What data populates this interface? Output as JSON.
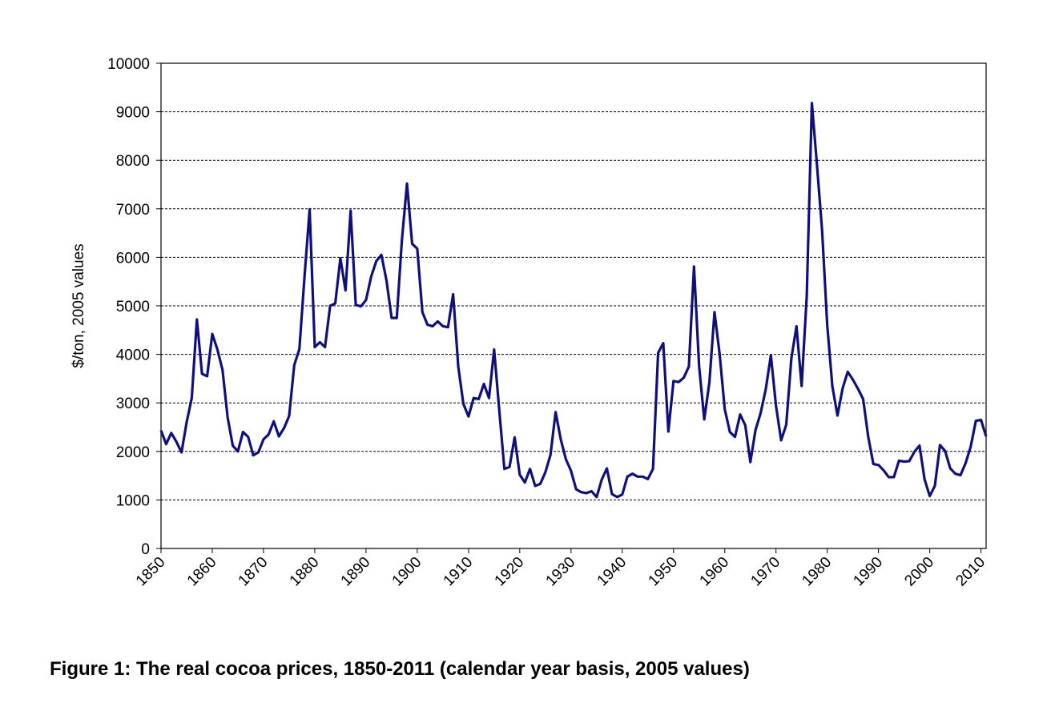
{
  "chart_data": {
    "type": "line",
    "caption": "Figure 1: The real cocoa prices, 1850-2011 (calendar year basis, 2005 values)",
    "y_label": "$/ton, 2005 values",
    "x": [
      1850,
      1851,
      1852,
      1853,
      1854,
      1855,
      1856,
      1857,
      1858,
      1859,
      1860,
      1861,
      1862,
      1863,
      1864,
      1865,
      1866,
      1867,
      1868,
      1869,
      1870,
      1871,
      1872,
      1873,
      1874,
      1875,
      1876,
      1877,
      1878,
      1879,
      1880,
      1881,
      1882,
      1883,
      1884,
      1885,
      1886,
      1887,
      1888,
      1889,
      1890,
      1891,
      1892,
      1893,
      1894,
      1895,
      1896,
      1897,
      1898,
      1899,
      1900,
      1901,
      1902,
      1903,
      1904,
      1905,
      1906,
      1907,
      1908,
      1909,
      1910,
      1911,
      1912,
      1913,
      1914,
      1915,
      1916,
      1917,
      1918,
      1919,
      1920,
      1921,
      1922,
      1923,
      1924,
      1925,
      1926,
      1927,
      1928,
      1929,
      1930,
      1931,
      1932,
      1933,
      1934,
      1935,
      1936,
      1937,
      1938,
      1939,
      1940,
      1941,
      1942,
      1943,
      1944,
      1945,
      1946,
      1947,
      1948,
      1949,
      1950,
      1951,
      1952,
      1953,
      1954,
      1955,
      1956,
      1957,
      1958,
      1959,
      1960,
      1961,
      1962,
      1963,
      1964,
      1965,
      1966,
      1967,
      1968,
      1969,
      1970,
      1971,
      1972,
      1973,
      1974,
      1975,
      1976,
      1977,
      1978,
      1979,
      1980,
      1981,
      1982,
      1983,
      1984,
      1985,
      1986,
      1987,
      1988,
      1989,
      1990,
      1991,
      1992,
      1993,
      1994,
      1995,
      1996,
      1997,
      1998,
      1999,
      2000,
      2001,
      2002,
      2003,
      2004,
      2005,
      2006,
      2007,
      2008,
      2009,
      2010,
      2011
    ],
    "series": [
      {
        "name": "Real cocoa price",
        "color": "#10107a",
        "values": [
          2430,
          2150,
          2380,
          2200,
          1980,
          2600,
          3100,
          4720,
          3600,
          3550,
          4420,
          4100,
          3680,
          2700,
          2120,
          2000,
          2400,
          2300,
          1920,
          1980,
          2250,
          2350,
          2620,
          2310,
          2480,
          2730,
          3780,
          4110,
          5600,
          6990,
          4150,
          4250,
          4150,
          5000,
          5050,
          5980,
          5320,
          6960,
          5020,
          4990,
          5120,
          5600,
          5920,
          6050,
          5520,
          4750,
          4750,
          6350,
          7520,
          6280,
          6180,
          4870,
          4610,
          4580,
          4680,
          4580,
          4560,
          5240,
          3750,
          2980,
          2720,
          3100,
          3080,
          3390,
          3100,
          4100,
          2850,
          1640,
          1680,
          2290,
          1520,
          1360,
          1640,
          1290,
          1330,
          1570,
          1930,
          2810,
          2250,
          1840,
          1600,
          1220,
          1160,
          1140,
          1180,
          1060,
          1420,
          1650,
          1120,
          1060,
          1110,
          1480,
          1540,
          1480,
          1480,
          1430,
          1640,
          4030,
          4230,
          2410,
          3450,
          3430,
          3520,
          3750,
          5810,
          3750,
          2660,
          3420,
          4870,
          4010,
          2870,
          2400,
          2300,
          2760,
          2540,
          1780,
          2440,
          2790,
          3280,
          3980,
          2940,
          2230,
          2550,
          3920,
          4580,
          3350,
          5200,
          9180,
          7900,
          6550,
          4600,
          3340,
          2740,
          3300,
          3640,
          3480,
          3290,
          3080,
          2300,
          1740,
          1720,
          1610,
          1470,
          1470,
          1810,
          1790,
          1800,
          1990,
          2120,
          1420,
          1080,
          1290,
          2130,
          2010,
          1650,
          1540,
          1510,
          1760,
          2100,
          2630,
          2650,
          2310
        ]
      }
    ],
    "xlim": [
      1850,
      2011
    ],
    "xticks": [
      1850,
      1860,
      1870,
      1880,
      1890,
      1900,
      1910,
      1920,
      1930,
      1940,
      1950,
      1960,
      1970,
      1980,
      1990,
      2000,
      2010
    ],
    "ylim": [
      0,
      10000
    ],
    "yticks": [
      0,
      1000,
      2000,
      3000,
      4000,
      5000,
      6000,
      7000,
      8000,
      9000,
      10000
    ],
    "grid": true
  }
}
